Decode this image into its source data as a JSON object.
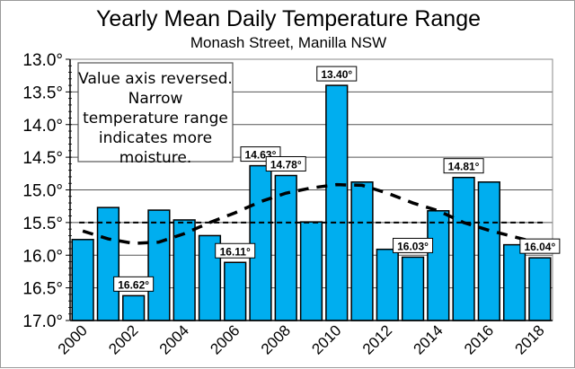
{
  "chart_data": {
    "type": "bar",
    "title": "Yearly Mean Daily Temperature Range",
    "subtitle": "Monash Street, Manilla NSW",
    "categories": [
      "2000",
      "2001",
      "2002",
      "2003",
      "2004",
      "2005",
      "2006",
      "2007",
      "2008",
      "2009",
      "2010",
      "2011",
      "2012",
      "2013",
      "2014",
      "2015",
      "2016",
      "2017",
      "2018"
    ],
    "values": [
      15.76,
      15.27,
      16.62,
      15.31,
      15.46,
      15.7,
      16.11,
      14.63,
      14.78,
      15.49,
      13.4,
      14.88,
      15.91,
      16.03,
      15.32,
      14.81,
      14.88,
      15.84,
      16.04
    ],
    "data_labels": {
      "2002": "16.62°",
      "2006": "16.11°",
      "2007": "14.63°",
      "2008": "14.78°",
      "2010": "13.40°",
      "2013": "16.03°",
      "2015": "14.81°",
      "2018": "16.04°"
    },
    "mean_line": 15.5,
    "trend": [
      15.63,
      15.75,
      15.82,
      15.8,
      15.67,
      15.5,
      15.35,
      15.18,
      15.05,
      14.97,
      14.92,
      14.93,
      15.05,
      15.2,
      15.32,
      15.5,
      15.62,
      15.72,
      15.82
    ],
    "y_axis": {
      "reversed": true,
      "ylim": [
        13.0,
        17.0
      ],
      "ticks": [
        "13.0°",
        "13.5°",
        "14.0°",
        "14.5°",
        "15.0°",
        "15.5°",
        "16.0°",
        "16.5°",
        "17.0°"
      ]
    },
    "x_tick_labels": [
      "2000",
      "2002",
      "2004",
      "2006",
      "2008",
      "2010",
      "2012",
      "2014",
      "2016",
      "2018"
    ],
    "grid": true,
    "bar_color": "#00AEEF",
    "annotation": [
      "Value axis reversed.",
      "Narrow",
      "temperature range",
      "indicates more",
      "moisture."
    ]
  }
}
